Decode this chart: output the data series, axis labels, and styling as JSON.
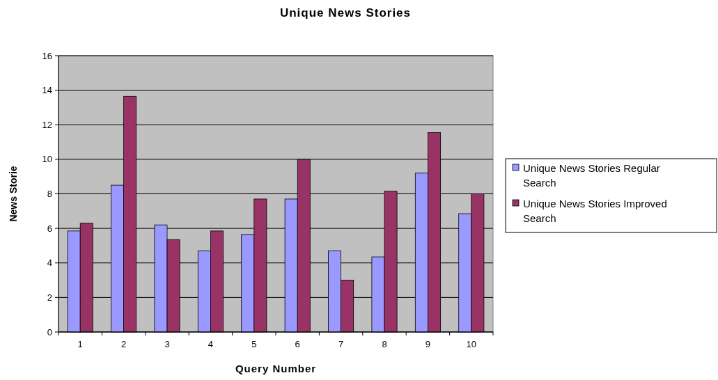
{
  "chart_data": {
    "type": "bar",
    "title": "Unique News Stories",
    "xlabel": "Query Number",
    "ylabel": "News Storie",
    "categories": [
      "1",
      "2",
      "3",
      "4",
      "5",
      "6",
      "7",
      "8",
      "9",
      "10"
    ],
    "series": [
      {
        "name": "Unique News Stories Regular Search",
        "color": "#9999ff",
        "values": [
          5.85,
          8.5,
          6.2,
          4.7,
          5.65,
          7.7,
          4.7,
          4.35,
          9.2,
          6.85
        ]
      },
      {
        "name": "Unique News Stories Improved Search",
        "color": "#993366",
        "values": [
          6.3,
          13.65,
          5.35,
          5.85,
          7.7,
          10,
          3.0,
          8.15,
          11.55,
          8.0
        ]
      }
    ],
    "ylim": [
      0,
      16
    ],
    "yticks": [
      0,
      2,
      4,
      6,
      8,
      10,
      12,
      14,
      16
    ],
    "grid": "y",
    "legend": "right"
  }
}
